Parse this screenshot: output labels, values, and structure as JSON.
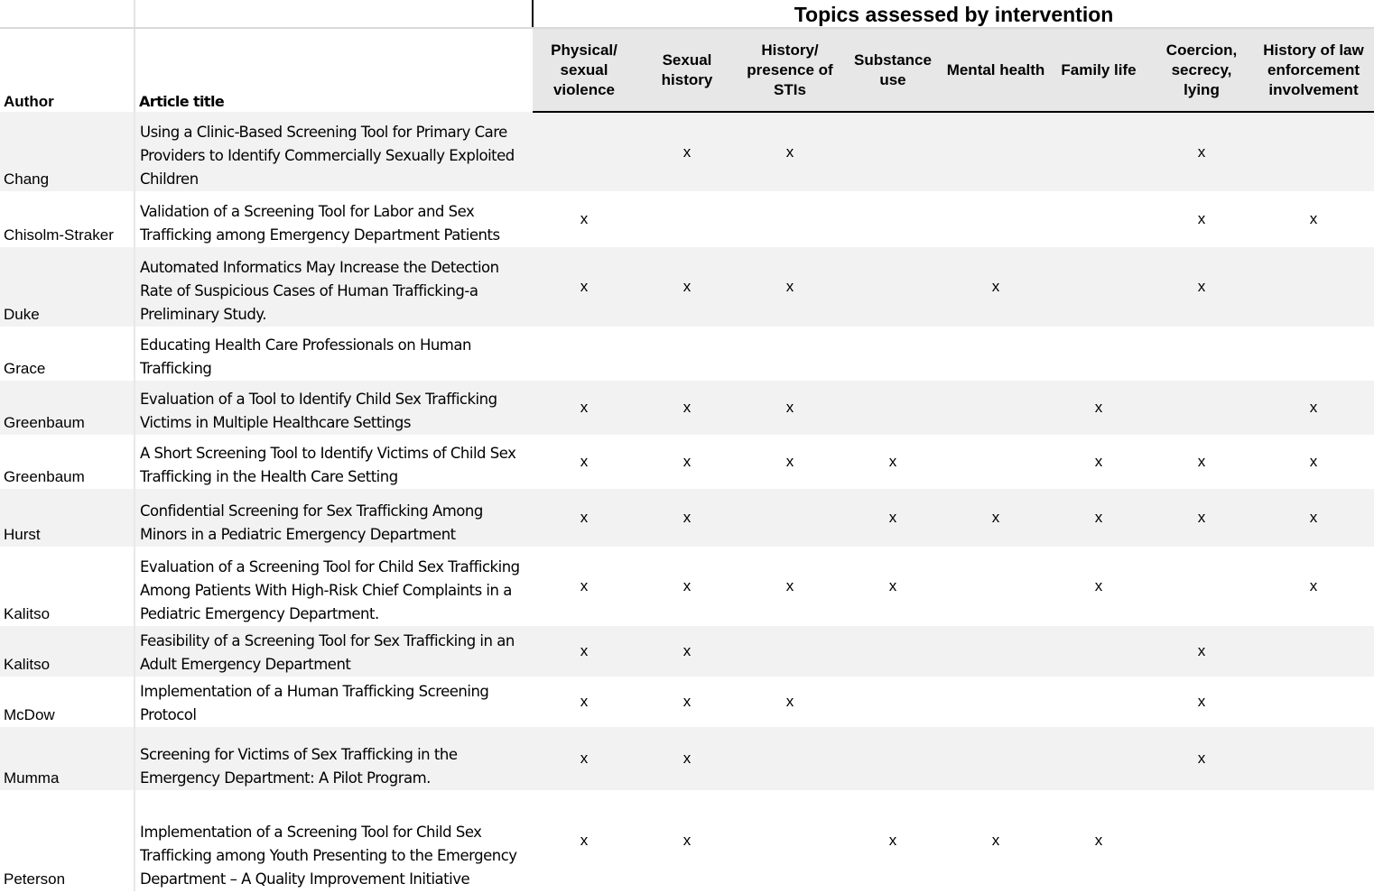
{
  "group_title": "Topics assessed by intervention",
  "headers": {
    "author": "Author",
    "title": "Article title",
    "topics": [
      "Physical/ sexual violence",
      "Sexual history",
      "History/ presence of STIs",
      "Substance use",
      "Mental health",
      "Family life",
      "Coercion, secrecy, lying",
      "History of law enforcement involvement"
    ]
  },
  "colors": {
    "row_shade": "#f2f2f2",
    "header_topic_bg": "#e7e7e7",
    "rule": "#000000"
  },
  "rows": [
    {
      "author": "Chang",
      "title": "Using a Clinic-Based Screening Tool for Primary Care Providers to Identify Commercially Sexually Exploited Children",
      "marks": [
        "",
        "x",
        "x",
        "",
        "",
        "",
        "x",
        ""
      ]
    },
    {
      "author": "Chisolm-Straker",
      "title": "Validation of a Screening Tool for Labor and Sex Trafficking among Emergency Department Patients",
      "marks": [
        "x",
        "",
        "",
        "",
        "",
        "",
        "x",
        "x"
      ]
    },
    {
      "author": "Duke",
      "title": "Automated Informatics May Increase the Detection Rate of Suspicious Cases of Human Trafficking-a Preliminary Study.",
      "marks": [
        "x",
        "x",
        "x",
        "",
        "x",
        "",
        "x",
        ""
      ]
    },
    {
      "author": "Grace",
      "title": "Educating Health Care Professionals on Human Trafficking",
      "marks": [
        "",
        "",
        "",
        "",
        "",
        "",
        "",
        ""
      ]
    },
    {
      "author": "Greenbaum",
      "title": "Evaluation of a Tool to Identify Child Sex Trafficking Victims in Multiple Healthcare Settings",
      "marks": [
        "x",
        "x",
        "x",
        "",
        "",
        "x",
        "",
        "x"
      ]
    },
    {
      "author": "Greenbaum",
      "title": "A Short Screening Tool to Identify Victims of Child Sex Trafficking in the Health Care Setting",
      "marks": [
        "x",
        "x",
        "x",
        "x",
        "",
        "x",
        "x",
        "x"
      ]
    },
    {
      "author": "Hurst",
      "title": "Confidential Screening for Sex Trafficking Among Minors in a Pediatric Emergency Department",
      "marks": [
        "x",
        "x",
        "",
        "x",
        "x",
        "x",
        "x",
        "x"
      ]
    },
    {
      "author": "Kalitso",
      "title": "Evaluation of a Screening Tool for Child Sex Trafficking Among Patients With High-Risk Chief Complaints in a Pediatric Emergency Department.",
      "marks": [
        "x",
        "x",
        "x",
        "x",
        "",
        "x",
        "",
        "x"
      ]
    },
    {
      "author": "Kalitso",
      "title": "Feasibility of a Screening Tool for Sex Trafficking in an Adult Emergency Department",
      "marks": [
        "x",
        "x",
        "",
        "",
        "",
        "",
        "x",
        ""
      ]
    },
    {
      "author": "McDow",
      "title": "Implementation of a Human Trafficking Screening Protocol",
      "marks": [
        "x",
        "x",
        "x",
        "",
        "",
        "",
        "x",
        ""
      ]
    },
    {
      "author": "Mumma",
      "title": "Screening for Victims of Sex Trafficking in the Emergency Department: A Pilot Program.",
      "marks": [
        "x",
        "x",
        "",
        "",
        "",
        "",
        "x",
        ""
      ]
    },
    {
      "author": "Peterson",
      "title": "Implementation of a Screening Tool for Child Sex Trafficking among Youth Presenting to the Emergency Department – A Quality Improvement Initiative",
      "marks": [
        "x",
        "x",
        "",
        "x",
        "x",
        "x",
        "",
        ""
      ]
    }
  ]
}
